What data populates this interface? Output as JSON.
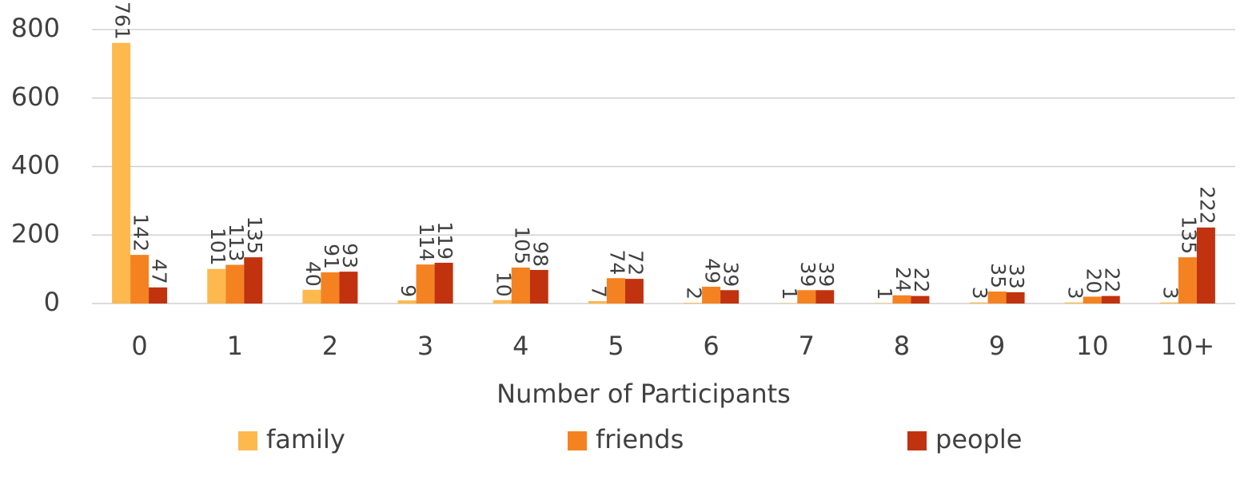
{
  "chart_data": {
    "type": "bar",
    "x_label": "Number of Participants",
    "categories": [
      "0",
      "1",
      "2",
      "3",
      "4",
      "5",
      "6",
      "7",
      "8",
      "9",
      "10",
      "10+"
    ],
    "series": [
      {
        "name": "family",
        "color": "#fdb94d",
        "values": [
          761,
          101,
          40,
          9,
          10,
          7,
          2,
          1,
          1,
          3,
          3,
          3
        ]
      },
      {
        "name": "friends",
        "color": "#f58220",
        "values": [
          142,
          113,
          91,
          114,
          105,
          74,
          49,
          39,
          24,
          35,
          20,
          135
        ]
      },
      {
        "name": "people",
        "color": "#c0330e",
        "values": [
          47,
          135,
          93,
          119,
          98,
          72,
          39,
          39,
          22,
          33,
          22,
          222
        ]
      }
    ],
    "ylim": [
      0,
      800
    ],
    "yticks": [
      0,
      200,
      400,
      600,
      800
    ],
    "grid": true,
    "legend": "bottom"
  }
}
